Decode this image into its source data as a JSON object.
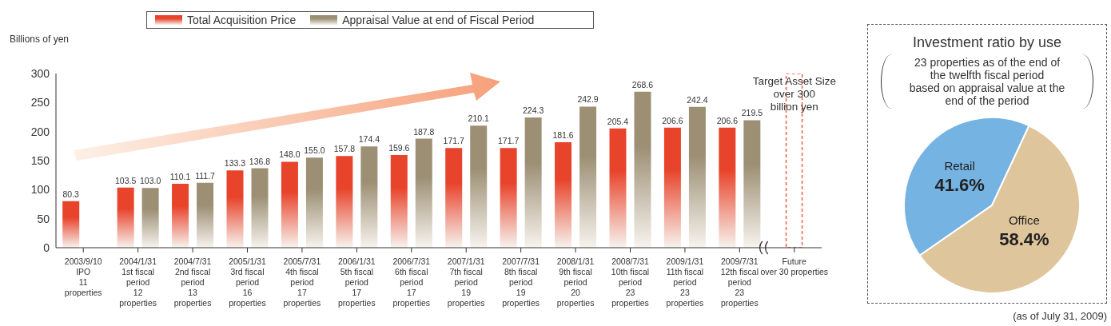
{
  "chart_data": [
    {
      "type": "bar",
      "ylabel": "Billions of yen",
      "categories": [
        "2003/9/10\nIPO\n11\nproperties",
        "2004/1/31\n1st fiscal\nperiod\n12\nproperties",
        "2004/7/31\n2nd fiscal\nperiod\n13\nproperties",
        "2005/1/31\n3rd fiscal\nperiod\n16\nproperties",
        "2005/7/31\n4th fiscal\nperiod\n17\nproperties",
        "2006/1/31\n5th fiscal\nperiod\n17\nproperties",
        "2006/7/31\n6th fiscal\nperiod\n17\nproperties",
        "2007/1/31\n7th fiscal\nperiod\n19\nproperties",
        "2007/7/31\n8th fiscal\nperiod\n19\nproperties",
        "2008/1/31\n9th fiscal\nperiod\n20\nproperties",
        "2008/7/31\n10th fiscal\nperiod\n23\nproperties",
        "2009/1/31\n11th fiscal\nperiod\n23\nproperties",
        "2009/7/31\n12th fiscal\nperiod\n23\nproperties",
        "Future\nover 30 properties"
      ],
      "series": [
        {
          "name": "Total Acquisition Price",
          "color": "#e8432b",
          "values": [
            80.3,
            103.5,
            110.1,
            133.3,
            148.0,
            157.8,
            159.6,
            171.7,
            171.7,
            181.6,
            205.4,
            206.6,
            206.6,
            null
          ],
          "value_labels": [
            "80.3",
            "103.5",
            "110.1",
            "133.3",
            "148.0",
            "157.8",
            "159.6",
            "171.7",
            "171.7",
            "181.6",
            "205.4",
            "206.6",
            "206.6",
            null
          ]
        },
        {
          "name": "Appraisal Value at end of Fiscal Period",
          "color": "#9c8f74",
          "values": [
            null,
            103.0,
            111.7,
            136.8,
            155.0,
            174.4,
            187.8,
            210.1,
            224.3,
            242.9,
            268.6,
            242.4,
            219.5,
            null
          ],
          "value_labels": [
            null,
            "103.0",
            "111.7",
            "136.8",
            "155.0",
            "174.4",
            "187.8",
            "210.1",
            "224.3",
            "242.9",
            "268.6",
            "242.4",
            "219.5",
            null
          ]
        },
        {
          "color": "#f25a45",
          "line_style": "dashed",
          "values": [
            null,
            null,
            null,
            null,
            null,
            null,
            null,
            null,
            null,
            null,
            null,
            null,
            null,
            300
          ]
        }
      ],
      "ylim": [
        0,
        300
      ],
      "yticks": [
        0,
        50,
        100,
        150,
        200,
        250,
        300
      ],
      "legend": "top",
      "annotations": [
        {
          "text": "Target Asset Size\nover 300\nbillion yen",
          "x": "Future\nover 30 properties",
          "y": 300
        }
      ]
    },
    {
      "type": "pie",
      "title": "Investment ratio by use",
      "subtitle": "23 properties as of the end of\nthe twelfth fiscal period\nbased on appraisal value at the\nend of the period",
      "categories": [
        "Retail",
        "Office"
      ],
      "values": [
        41.6,
        58.4
      ],
      "colors": [
        "#74b3e2",
        "#dfc59c"
      ],
      "value_labels": [
        "41.6%",
        "58.4%"
      ],
      "legend": false,
      "annotations": [
        "(as of July 31, 2009)"
      ]
    }
  ]
}
